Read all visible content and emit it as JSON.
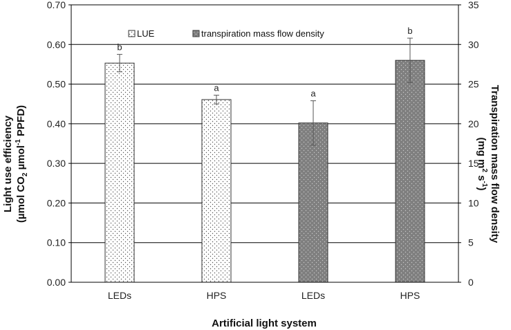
{
  "chart_data": {
    "type": "bar",
    "xlabel": "Artificial light system",
    "categories": [
      "LEDs",
      "HPS",
      "LEDs",
      "HPS"
    ],
    "ylabel_left": {
      "line1": "Light use efficiency",
      "line2_pre": "(µmol CO",
      "line2_sub": "2",
      "line2_mid": " µmol",
      "line2_sup": "-1",
      "line2_post": " PPFD)"
    },
    "ylabel_right": {
      "line1": "Transpiration mass flow density",
      "line2_pre": "(mg m",
      "line2_sup1": "2",
      "line2_mid": " s",
      "line2_sup2": "-1",
      "line2_post": ")"
    },
    "ylim_left": [
      0,
      0.7
    ],
    "ylim_right": [
      0,
      35
    ],
    "yticks_left": [
      "0.00",
      "0.10",
      "0.20",
      "0.30",
      "0.40",
      "0.50",
      "0.60",
      "0.70"
    ],
    "yticks_right": [
      "0",
      "5",
      "10",
      "15",
      "20",
      "25",
      "30",
      "35"
    ],
    "grid": true,
    "legend_position": "top",
    "series": [
      {
        "name": "LUE",
        "axis": "left",
        "fill": "light-dotted",
        "color": "#ffffff",
        "dot_color": "#555555",
        "values": [
          {
            "category_index": 0,
            "value": 0.553,
            "error": 0.022,
            "letter": "b"
          },
          {
            "category_index": 1,
            "value": 0.461,
            "error": 0.011,
            "letter": "a"
          }
        ]
      },
      {
        "name": "transpiration mass flow density",
        "axis": "right",
        "fill": "dark-dotted",
        "color": "#7f7f7f",
        "dot_color": "#c8c8c8",
        "values": [
          {
            "category_index": 2,
            "value": 20.1,
            "error": 2.8,
            "letter": "a"
          },
          {
            "category_index": 3,
            "value": 28.0,
            "error": 2.8,
            "letter": "b"
          }
        ]
      }
    ]
  }
}
